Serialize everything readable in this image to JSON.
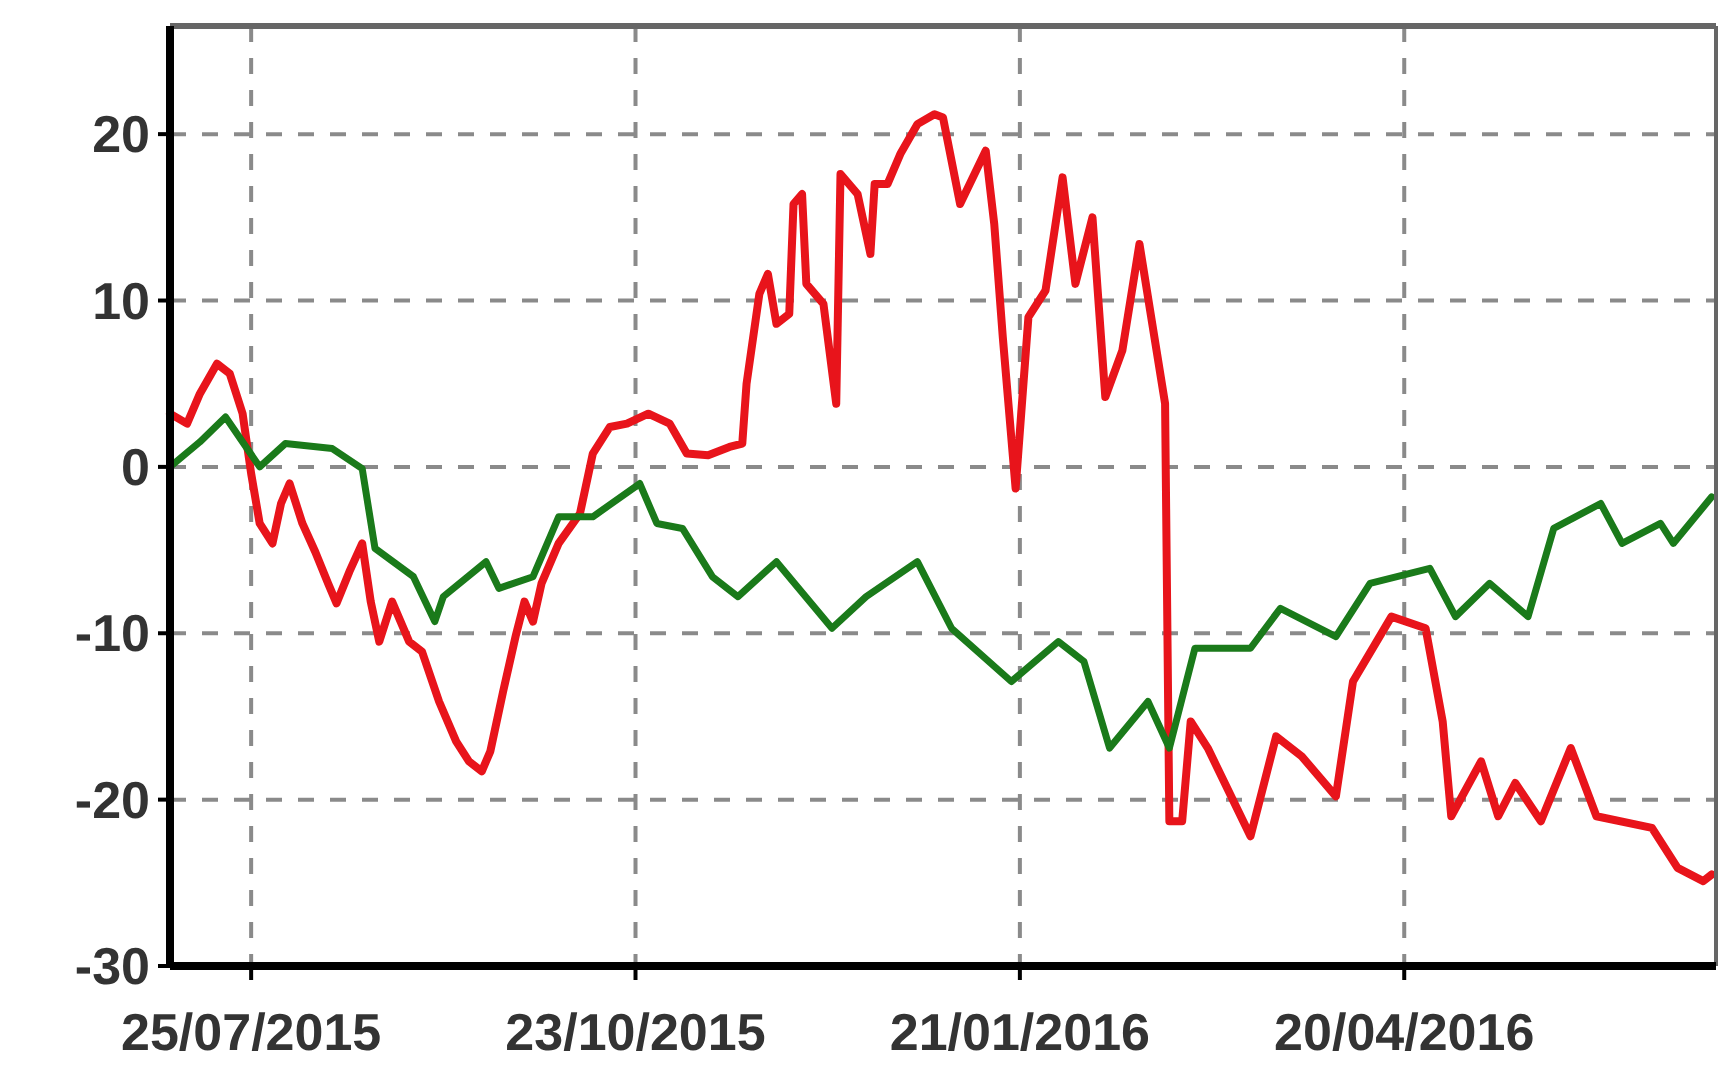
{
  "chart_data": {
    "type": "line",
    "xlim": [
      "2015-07-06",
      "2016-07-02"
    ],
    "xticks": [
      {
        "value": "2015-07-25",
        "label": "25/07/2015"
      },
      {
        "value": "2015-10-23",
        "label": "23/10/2015"
      },
      {
        "value": "2016-01-21",
        "label": "21/01/2016"
      },
      {
        "value": "2016-04-20",
        "label": "20/04/2016"
      }
    ],
    "ylim": [
      -30,
      26.5
    ],
    "yticks": [
      -30,
      -20,
      -10,
      0,
      10,
      20
    ],
    "grid": true,
    "line_style": "solid",
    "marker": "none",
    "series": [
      {
        "color": "#e8141b",
        "x": [
          "2015-07-06",
          "2015-07-10",
          "2015-07-13",
          "2015-07-17",
          "2015-07-20",
          "2015-07-23",
          "2015-07-25",
          "2015-07-27",
          "2015-07-30",
          "2015-08-01",
          "2015-08-03",
          "2015-08-06",
          "2015-08-09",
          "2015-08-12",
          "2015-08-14",
          "2015-08-17",
          "2015-08-20",
          "2015-08-22",
          "2015-08-24",
          "2015-08-27",
          "2015-08-29",
          "2015-08-31",
          "2015-09-03",
          "2015-09-07",
          "2015-09-11",
          "2015-09-14",
          "2015-09-17",
          "2015-09-19",
          "2015-09-22",
          "2015-09-25",
          "2015-09-27",
          "2015-09-29",
          "2015-10-01",
          "2015-10-05",
          "2015-10-10",
          "2015-10-13",
          "2015-10-17",
          "2015-10-21",
          "2015-10-26",
          "2015-10-31",
          "2015-11-04",
          "2015-11-09",
          "2015-11-14",
          "2015-11-17",
          "2015-11-18",
          "2015-11-21",
          "2015-11-23",
          "2015-11-25",
          "2015-11-28",
          "2015-11-29",
          "2015-12-01",
          "2015-12-02",
          "2015-12-06",
          "2015-12-09",
          "2015-12-10",
          "2015-12-14",
          "2015-12-17",
          "2015-12-18",
          "2015-12-21",
          "2015-12-24",
          "2015-12-28",
          "2016-01-01",
          "2016-01-03",
          "2016-01-07",
          "2016-01-13",
          "2016-01-15",
          "2016-01-17",
          "2016-01-20",
          "2016-01-23",
          "2016-01-27",
          "2016-01-31",
          "2016-02-03",
          "2016-02-07",
          "2016-02-10",
          "2016-02-14",
          "2016-02-18",
          "2016-02-21",
          "2016-02-24",
          "2016-02-25",
          "2016-02-28",
          "2016-03-01",
          "2016-03-05",
          "2016-03-15",
          "2016-03-21",
          "2016-03-27",
          "2016-04-04",
          "2016-04-08",
          "2016-04-17",
          "2016-04-25",
          "2016-04-29",
          "2016-05-01",
          "2016-05-08",
          "2016-05-12",
          "2016-05-16",
          "2016-05-22",
          "2016-05-29",
          "2016-06-04",
          "2016-06-17",
          "2016-06-23",
          "2016-06-29",
          "2016-07-01"
        ],
        "values": [
          3.2,
          2.6,
          4.4,
          6.2,
          5.6,
          3.2,
          -0.4,
          -3.4,
          -4.6,
          -2.2,
          -1.0,
          -3.4,
          -5.1,
          -7.0,
          -8.2,
          -6.3,
          -4.6,
          -8.1,
          -10.5,
          -8.1,
          -9.3,
          -10.5,
          -11.1,
          -14.1,
          -16.5,
          -17.7,
          -18.3,
          -17.1,
          -13.5,
          -10.1,
          -8.1,
          -9.3,
          -7.0,
          -4.6,
          -2.8,
          0.8,
          2.4,
          2.6,
          3.2,
          2.6,
          0.8,
          0.7,
          1.2,
          1.4,
          5.0,
          10.4,
          11.6,
          8.6,
          9.2,
          15.8,
          16.4,
          11.0,
          9.8,
          3.8,
          17.6,
          16.4,
          12.8,
          17.0,
          17.0,
          18.8,
          20.6,
          21.2,
          21.0,
          15.8,
          19.0,
          14.6,
          7.8,
          -1.3,
          9.0,
          10.6,
          17.4,
          11.0,
          15.0,
          4.2,
          7.0,
          13.4,
          8.6,
          3.8,
          -21.3,
          -21.3,
          -15.3,
          -16.9,
          -22.2,
          -16.2,
          -17.4,
          -19.8,
          -12.9,
          -9.0,
          -9.7,
          -15.3,
          -21.0,
          -17.7,
          -21.0,
          -19.0,
          -21.3,
          -16.9,
          -21.0,
          -21.7,
          -24.1,
          -24.9,
          -24.5
        ]
      },
      {
        "color": "#1a7a1a",
        "x": [
          "2015-07-06",
          "2015-07-13",
          "2015-07-19",
          "2015-07-27",
          "2015-08-02",
          "2015-08-13",
          "2015-08-20",
          "2015-08-23",
          "2015-09-01",
          "2015-09-06",
          "2015-09-08",
          "2015-09-18",
          "2015-09-21",
          "2015-09-29",
          "2015-10-05",
          "2015-10-13",
          "2015-10-24",
          "2015-10-28",
          "2015-11-03",
          "2015-11-10",
          "2015-11-16",
          "2015-11-25",
          "2015-12-08",
          "2015-12-16",
          "2015-12-28",
          "2016-01-05",
          "2016-01-19",
          "2016-01-30",
          "2016-02-05",
          "2016-02-11",
          "2016-02-20",
          "2016-02-25",
          "2016-03-02",
          "2016-03-15",
          "2016-03-22",
          "2016-04-04",
          "2016-04-12",
          "2016-04-26",
          "2016-05-02",
          "2016-05-10",
          "2016-05-19",
          "2016-05-25",
          "2016-06-05",
          "2016-06-10",
          "2016-06-19",
          "2016-06-22",
          "2016-07-01"
        ],
        "values": [
          0.0,
          1.5,
          3.0,
          0.0,
          1.4,
          1.1,
          -0.1,
          -4.9,
          -6.6,
          -9.3,
          -7.8,
          -5.7,
          -7.3,
          -6.6,
          -3.0,
          -3.0,
          -1.0,
          -3.4,
          -3.7,
          -6.6,
          -7.8,
          -5.7,
          -9.7,
          -7.8,
          -5.7,
          -9.7,
          -12.9,
          -10.5,
          -11.7,
          -16.9,
          -14.1,
          -16.9,
          -10.9,
          -10.9,
          -8.5,
          -10.2,
          -7.0,
          -6.1,
          -9.0,
          -7.0,
          -9.0,
          -3.7,
          -2.2,
          -4.6,
          -3.4,
          -4.6,
          -1.8
        ]
      }
    ]
  }
}
